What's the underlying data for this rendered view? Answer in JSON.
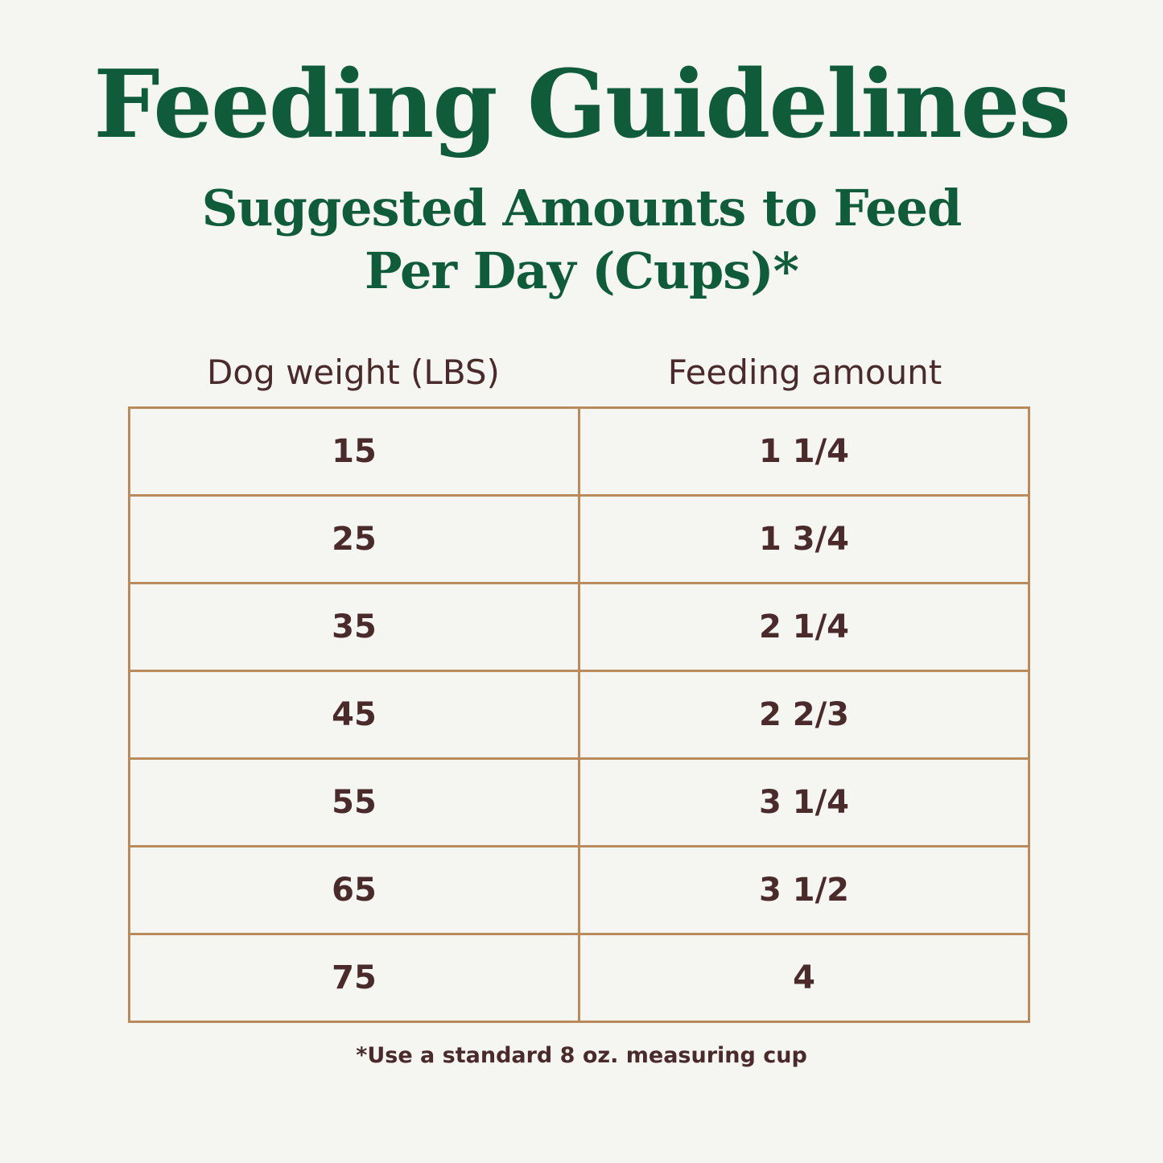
{
  "header": {
    "title": "Feeding Guidelines",
    "subtitle_line1": "Suggested Amounts to Feed",
    "subtitle_line2": "Per Day (Cups)*"
  },
  "table": {
    "columns": [
      "Dog weight (LBS)",
      "Feeding amount"
    ],
    "rows": [
      [
        "15",
        "1 1/4"
      ],
      [
        "25",
        "1 3/4"
      ],
      [
        "35",
        "2 1/4"
      ],
      [
        "45",
        "2 2/3"
      ],
      [
        "55",
        "3 1/4"
      ],
      [
        "65",
        "3 1/2"
      ],
      [
        "75",
        "4"
      ]
    ]
  },
  "footnote": "*Use a standard 8 oz. measuring cup"
}
